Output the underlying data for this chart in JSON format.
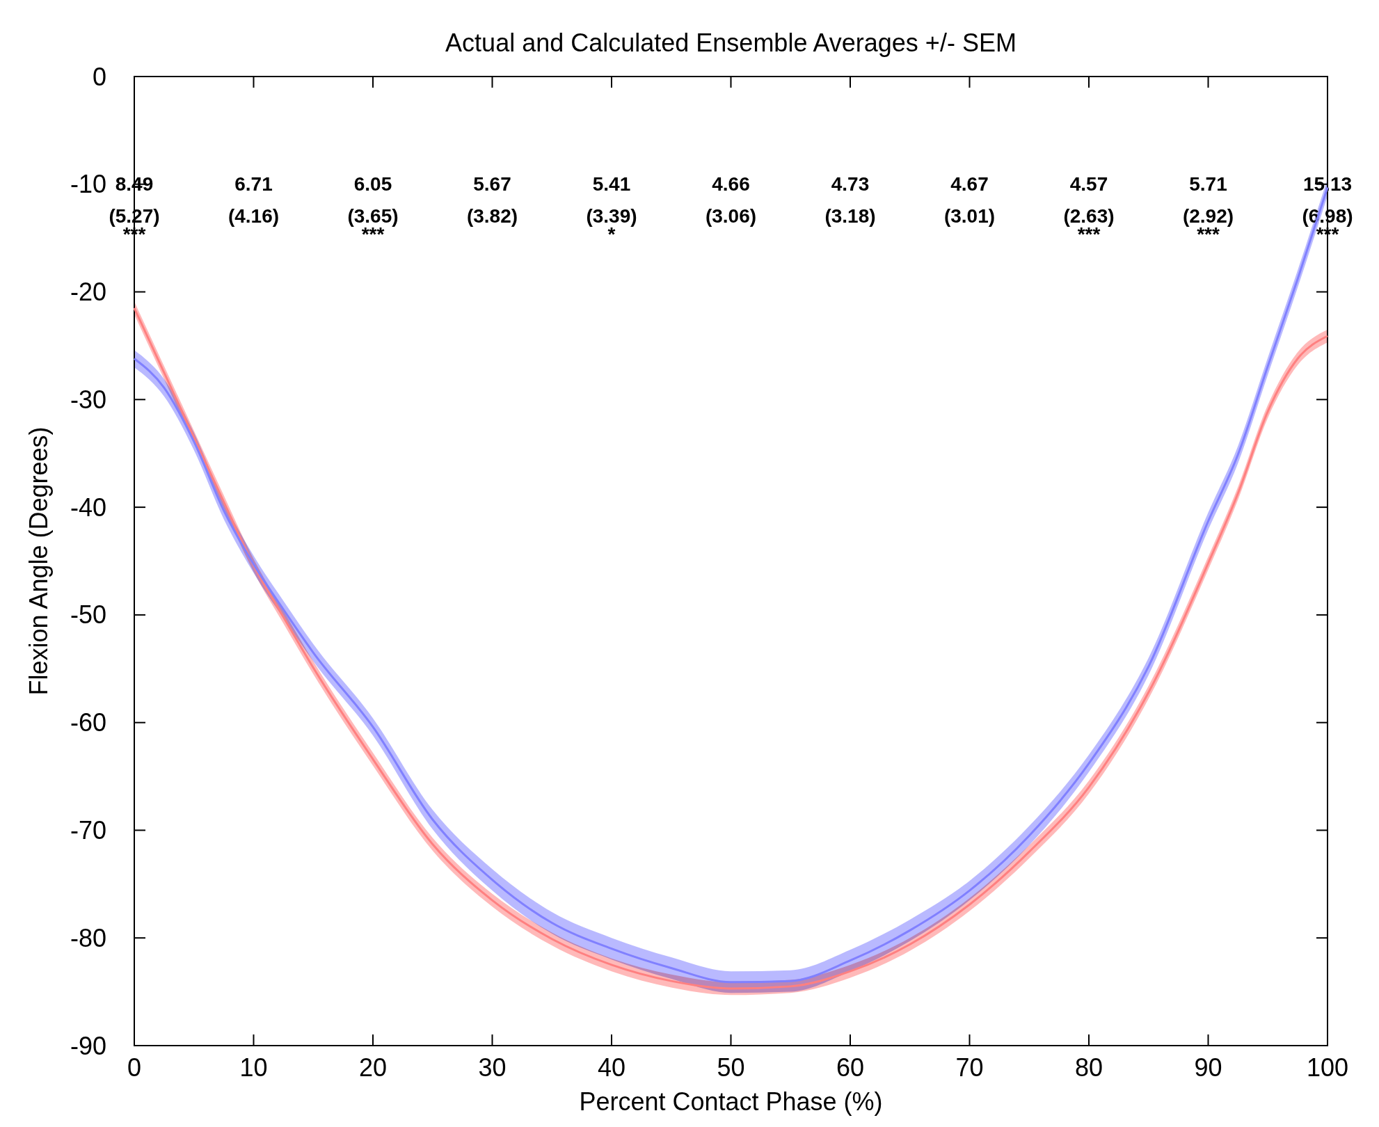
{
  "chart_data": {
    "type": "line",
    "title": "Actual and Calculated Ensemble Averages +/- SEM",
    "xlabel": "Percent Contact Phase (%)",
    "ylabel": "Flexion Angle (Degrees)",
    "xlim": [
      0,
      100
    ],
    "xticks": [
      0,
      10,
      20,
      30,
      40,
      50,
      60,
      70,
      80,
      90,
      100
    ],
    "ylim": [
      -90,
      0
    ],
    "yticks": [
      -90,
      -80,
      -70,
      -60,
      -50,
      -40,
      -30,
      -20,
      -10,
      0
    ],
    "grid": false,
    "marker": "none",
    "line_style": "solid",
    "x": [
      0,
      2.5,
      5,
      7.5,
      10,
      12.5,
      15,
      20,
      25,
      30,
      35,
      40,
      45,
      50,
      55,
      60,
      65,
      70,
      75,
      80,
      85,
      90,
      92.5,
      95,
      97.5,
      100
    ],
    "series": [
      {
        "color": "#ff8080",
        "values": [
          -21.5,
          -27.5,
          -33.5,
          -39.5,
          -45.4,
          -50.2,
          -54.9,
          -63.4,
          -71.3,
          -76.5,
          -80.1,
          -82.5,
          -84.0,
          -84.7,
          -84.5,
          -83.1,
          -80.6,
          -76.9,
          -72.0,
          -66.0,
          -57.2,
          -45.2,
          -38.7,
          -31.1,
          -26.2,
          -24.1
        ],
        "lower": [
          -22.1,
          -28.1,
          -34.1,
          -40.1,
          -46.0,
          -50.8,
          -55.5,
          -64.0,
          -71.9,
          -77.1,
          -80.7,
          -83.1,
          -84.6,
          -85.3,
          -85.1,
          -83.7,
          -81.2,
          -77.5,
          -72.6,
          -66.6,
          -57.8,
          -45.8,
          -39.3,
          -31.7,
          -26.8,
          -24.7
        ],
        "upper": [
          -20.9,
          -26.9,
          -32.9,
          -38.9,
          -44.8,
          -49.6,
          -54.3,
          -62.8,
          -70.7,
          -75.9,
          -79.5,
          -81.9,
          -83.4,
          -84.1,
          -83.9,
          -82.5,
          -80.0,
          -76.3,
          -71.4,
          -65.4,
          -56.6,
          -44.6,
          -38.1,
          -30.5,
          -25.6,
          -23.5
        ]
      },
      {
        "color": "#8080ff",
        "values": [
          -26.2,
          -28.9,
          -33.9,
          -40.3,
          -45.3,
          -49.5,
          -53.5,
          -60.4,
          -69.0,
          -74.6,
          -78.6,
          -81.0,
          -82.8,
          -84.1,
          -84.0,
          -82.1,
          -79.3,
          -75.6,
          -70.5,
          -63.8,
          -54.8,
          -41.3,
          -35.1,
          -26.9,
          -18.8,
          -10.3
        ],
        "lower": [
          -27.0,
          -29.7,
          -34.7,
          -41.1,
          -46.1,
          -50.3,
          -54.3,
          -61.2,
          -69.9,
          -75.6,
          -79.6,
          -82.0,
          -83.8,
          -85.1,
          -85.0,
          -83.1,
          -80.3,
          -76.5,
          -71.4,
          -64.6,
          -55.6,
          -42.1,
          -35.9,
          -27.7,
          -19.6,
          -11.1
        ],
        "upper": [
          -25.4,
          -28.1,
          -33.1,
          -39.5,
          -44.5,
          -48.7,
          -52.7,
          -59.6,
          -68.1,
          -73.6,
          -77.6,
          -80.0,
          -81.8,
          -83.1,
          -83.0,
          -81.1,
          -78.3,
          -74.7,
          -69.6,
          -63.0,
          -54.0,
          -40.5,
          -34.3,
          -26.1,
          -18.0,
          -9.5
        ]
      }
    ],
    "annotations": [
      "8.49\n(5.27)\n***",
      "6.71\n(4.16)",
      "6.05\n(3.65)\n***",
      "5.67\n(3.82)",
      "5.41\n(3.39)\n*",
      "4.66\n(3.06)",
      "4.73\n(3.18)",
      "4.67\n(3.01)",
      "4.57\n(2.63)\n***",
      "5.71\n(2.92)\n***",
      "15.13\n(6.98)\n***"
    ]
  }
}
